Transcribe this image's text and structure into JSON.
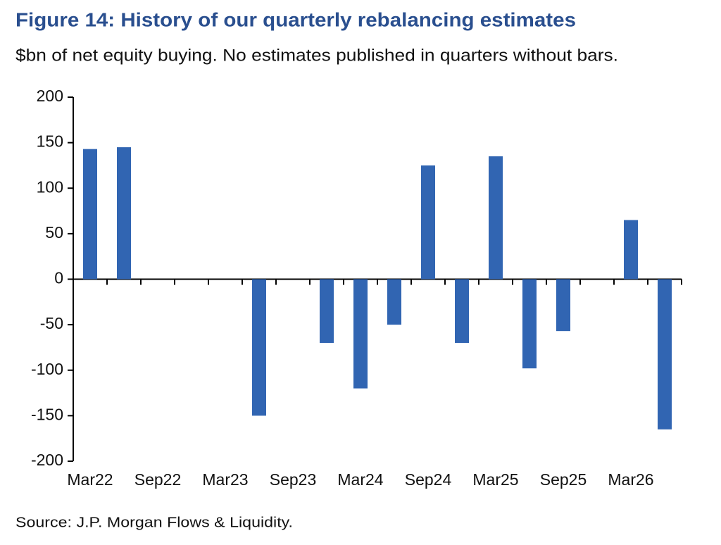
{
  "chart_data": {
    "type": "bar",
    "title": "Figure 14: History of our quarterly rebalancing estimates",
    "subtitle": "$bn of net equity buying. No estimates published in quarters without bars.",
    "source": "Source: J.P. Morgan Flows & Liquidity.",
    "categories": [
      "Mar22",
      null,
      "Sep22",
      null,
      "Mar23",
      null,
      "Sep23",
      null,
      "Mar24",
      null,
      "Sep24",
      null,
      "Mar25",
      null,
      "Sep25",
      null,
      "Mar26",
      null
    ],
    "values": [
      143,
      145,
      null,
      null,
      null,
      -150,
      null,
      -70,
      -120,
      -50,
      125,
      -70,
      135,
      -98,
      -57,
      null,
      65,
      -165
    ],
    "color": "#3165b2",
    "ylim": [
      -200,
      200
    ],
    "yticks": [
      -200,
      -150,
      -100,
      -50,
      0,
      50,
      100,
      150,
      200
    ],
    "grid": false
  }
}
